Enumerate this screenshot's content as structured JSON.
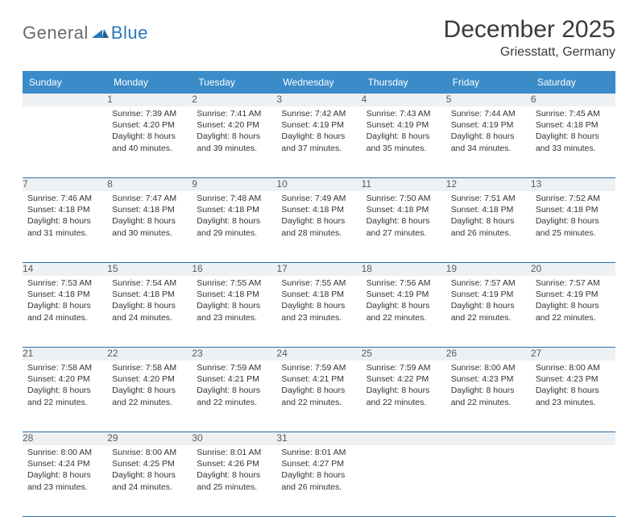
{
  "brand": {
    "general": "General",
    "blue": "Blue"
  },
  "title": "December 2025",
  "location": "Griesstatt, Germany",
  "colors": {
    "header_bg": "#3b8bc9",
    "header_text": "#ffffff",
    "daynum_bg": "#eef1f3",
    "daynum_text": "#5a5a5a",
    "row_divider": "#2f6fa8",
    "body_text": "#333333",
    "logo_gray": "#6b6b6b",
    "logo_blue": "#2a77bd"
  },
  "typography": {
    "title_fontsize": 30,
    "location_fontsize": 16,
    "header_fontsize": 12,
    "daynum_fontsize": 12,
    "cell_fontsize": 10.5
  },
  "weekdays": [
    "Sunday",
    "Monday",
    "Tuesday",
    "Wednesday",
    "Thursday",
    "Friday",
    "Saturday"
  ],
  "weeks": [
    [
      {
        "num": "",
        "lines": []
      },
      {
        "num": "1",
        "lines": [
          "Sunrise: 7:39 AM",
          "Sunset: 4:20 PM",
          "Daylight: 8 hours",
          "and 40 minutes."
        ]
      },
      {
        "num": "2",
        "lines": [
          "Sunrise: 7:41 AM",
          "Sunset: 4:20 PM",
          "Daylight: 8 hours",
          "and 39 minutes."
        ]
      },
      {
        "num": "3",
        "lines": [
          "Sunrise: 7:42 AM",
          "Sunset: 4:19 PM",
          "Daylight: 8 hours",
          "and 37 minutes."
        ]
      },
      {
        "num": "4",
        "lines": [
          "Sunrise: 7:43 AM",
          "Sunset: 4:19 PM",
          "Daylight: 8 hours",
          "and 35 minutes."
        ]
      },
      {
        "num": "5",
        "lines": [
          "Sunrise: 7:44 AM",
          "Sunset: 4:19 PM",
          "Daylight: 8 hours",
          "and 34 minutes."
        ]
      },
      {
        "num": "6",
        "lines": [
          "Sunrise: 7:45 AM",
          "Sunset: 4:18 PM",
          "Daylight: 8 hours",
          "and 33 minutes."
        ]
      }
    ],
    [
      {
        "num": "7",
        "lines": [
          "Sunrise: 7:46 AM",
          "Sunset: 4:18 PM",
          "Daylight: 8 hours",
          "and 31 minutes."
        ]
      },
      {
        "num": "8",
        "lines": [
          "Sunrise: 7:47 AM",
          "Sunset: 4:18 PM",
          "Daylight: 8 hours",
          "and 30 minutes."
        ]
      },
      {
        "num": "9",
        "lines": [
          "Sunrise: 7:48 AM",
          "Sunset: 4:18 PM",
          "Daylight: 8 hours",
          "and 29 minutes."
        ]
      },
      {
        "num": "10",
        "lines": [
          "Sunrise: 7:49 AM",
          "Sunset: 4:18 PM",
          "Daylight: 8 hours",
          "and 28 minutes."
        ]
      },
      {
        "num": "11",
        "lines": [
          "Sunrise: 7:50 AM",
          "Sunset: 4:18 PM",
          "Daylight: 8 hours",
          "and 27 minutes."
        ]
      },
      {
        "num": "12",
        "lines": [
          "Sunrise: 7:51 AM",
          "Sunset: 4:18 PM",
          "Daylight: 8 hours",
          "and 26 minutes."
        ]
      },
      {
        "num": "13",
        "lines": [
          "Sunrise: 7:52 AM",
          "Sunset: 4:18 PM",
          "Daylight: 8 hours",
          "and 25 minutes."
        ]
      }
    ],
    [
      {
        "num": "14",
        "lines": [
          "Sunrise: 7:53 AM",
          "Sunset: 4:18 PM",
          "Daylight: 8 hours",
          "and 24 minutes."
        ]
      },
      {
        "num": "15",
        "lines": [
          "Sunrise: 7:54 AM",
          "Sunset: 4:18 PM",
          "Daylight: 8 hours",
          "and 24 minutes."
        ]
      },
      {
        "num": "16",
        "lines": [
          "Sunrise: 7:55 AM",
          "Sunset: 4:18 PM",
          "Daylight: 8 hours",
          "and 23 minutes."
        ]
      },
      {
        "num": "17",
        "lines": [
          "Sunrise: 7:55 AM",
          "Sunset: 4:18 PM",
          "Daylight: 8 hours",
          "and 23 minutes."
        ]
      },
      {
        "num": "18",
        "lines": [
          "Sunrise: 7:56 AM",
          "Sunset: 4:19 PM",
          "Daylight: 8 hours",
          "and 22 minutes."
        ]
      },
      {
        "num": "19",
        "lines": [
          "Sunrise: 7:57 AM",
          "Sunset: 4:19 PM",
          "Daylight: 8 hours",
          "and 22 minutes."
        ]
      },
      {
        "num": "20",
        "lines": [
          "Sunrise: 7:57 AM",
          "Sunset: 4:19 PM",
          "Daylight: 8 hours",
          "and 22 minutes."
        ]
      }
    ],
    [
      {
        "num": "21",
        "lines": [
          "Sunrise: 7:58 AM",
          "Sunset: 4:20 PM",
          "Daylight: 8 hours",
          "and 22 minutes."
        ]
      },
      {
        "num": "22",
        "lines": [
          "Sunrise: 7:58 AM",
          "Sunset: 4:20 PM",
          "Daylight: 8 hours",
          "and 22 minutes."
        ]
      },
      {
        "num": "23",
        "lines": [
          "Sunrise: 7:59 AM",
          "Sunset: 4:21 PM",
          "Daylight: 8 hours",
          "and 22 minutes."
        ]
      },
      {
        "num": "24",
        "lines": [
          "Sunrise: 7:59 AM",
          "Sunset: 4:21 PM",
          "Daylight: 8 hours",
          "and 22 minutes."
        ]
      },
      {
        "num": "25",
        "lines": [
          "Sunrise: 7:59 AM",
          "Sunset: 4:22 PM",
          "Daylight: 8 hours",
          "and 22 minutes."
        ]
      },
      {
        "num": "26",
        "lines": [
          "Sunrise: 8:00 AM",
          "Sunset: 4:23 PM",
          "Daylight: 8 hours",
          "and 22 minutes."
        ]
      },
      {
        "num": "27",
        "lines": [
          "Sunrise: 8:00 AM",
          "Sunset: 4:23 PM",
          "Daylight: 8 hours",
          "and 23 minutes."
        ]
      }
    ],
    [
      {
        "num": "28",
        "lines": [
          "Sunrise: 8:00 AM",
          "Sunset: 4:24 PM",
          "Daylight: 8 hours",
          "and 23 minutes."
        ]
      },
      {
        "num": "29",
        "lines": [
          "Sunrise: 8:00 AM",
          "Sunset: 4:25 PM",
          "Daylight: 8 hours",
          "and 24 minutes."
        ]
      },
      {
        "num": "30",
        "lines": [
          "Sunrise: 8:01 AM",
          "Sunset: 4:26 PM",
          "Daylight: 8 hours",
          "and 25 minutes."
        ]
      },
      {
        "num": "31",
        "lines": [
          "Sunrise: 8:01 AM",
          "Sunset: 4:27 PM",
          "Daylight: 8 hours",
          "and 26 minutes."
        ]
      },
      {
        "num": "",
        "lines": []
      },
      {
        "num": "",
        "lines": []
      },
      {
        "num": "",
        "lines": []
      }
    ]
  ]
}
